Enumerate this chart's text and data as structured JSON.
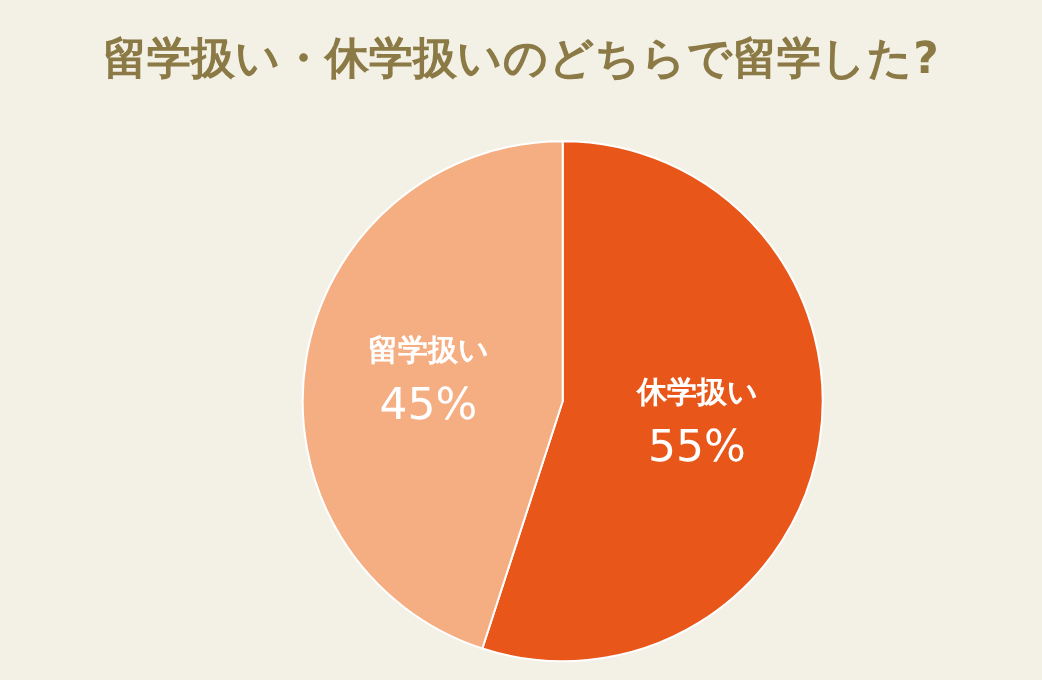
{
  "chart_data": {
    "type": "pie",
    "title": "留学扱い・休学扱いのどちらで留学した?",
    "categories": [
      "休学扱い",
      "留学扱い"
    ],
    "values": [
      55,
      45
    ],
    "value_labels": [
      "55%",
      "45%"
    ],
    "colors": [
      "#e8561a",
      "#f5ad82"
    ],
    "legend": false
  }
}
